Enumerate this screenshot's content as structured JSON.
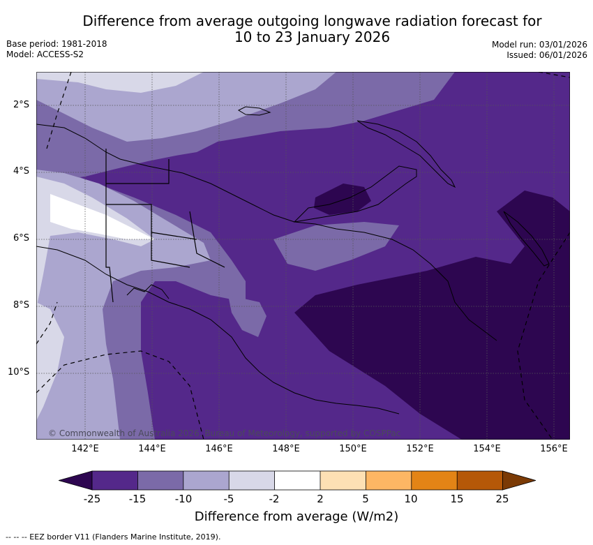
{
  "title_line1": "Difference from average outgoing longwave radiation forecast for",
  "title_line2": "10 to 23 January 2026",
  "base_period": "Base period: 1981-2018",
  "model": "Model: ACCESS-S2",
  "model_run": "Model run: 03/01/2026",
  "issued": "Issued: 06/01/2026",
  "lat_labels": [
    "2°S",
    "4°S",
    "6°S",
    "8°S",
    "10°S"
  ],
  "lon_labels": [
    "142°E",
    "144°E",
    "146°E",
    "148°E",
    "150°E",
    "152°E",
    "154°E",
    "156°E"
  ],
  "credit": "© Commonwealth of Australia 2026, Bureau of Meteorology, supported by COSPPac",
  "colorbar": {
    "title": "Difference from average (W/m2)",
    "tick_labels": [
      "-25",
      "-15",
      "-10",
      "-5",
      "-2",
      "2",
      "5",
      "10",
      "15",
      "25"
    ],
    "colors": {
      "below_min": "#2d0650",
      "c1": "#54288a",
      "c2": "#7b6aa8",
      "c3": "#aba6cf",
      "c4": "#d8d8e8",
      "c5": "#ffffff",
      "c6": "#fde0b4",
      "c7": "#fdb664",
      "c8": "#e38416",
      "c9": "#b55808",
      "above_max": "#7b3a05"
    }
  },
  "footnote": "--  --  -- EEZ border V11 (Flanders Marine Institute, 2019)."
}
